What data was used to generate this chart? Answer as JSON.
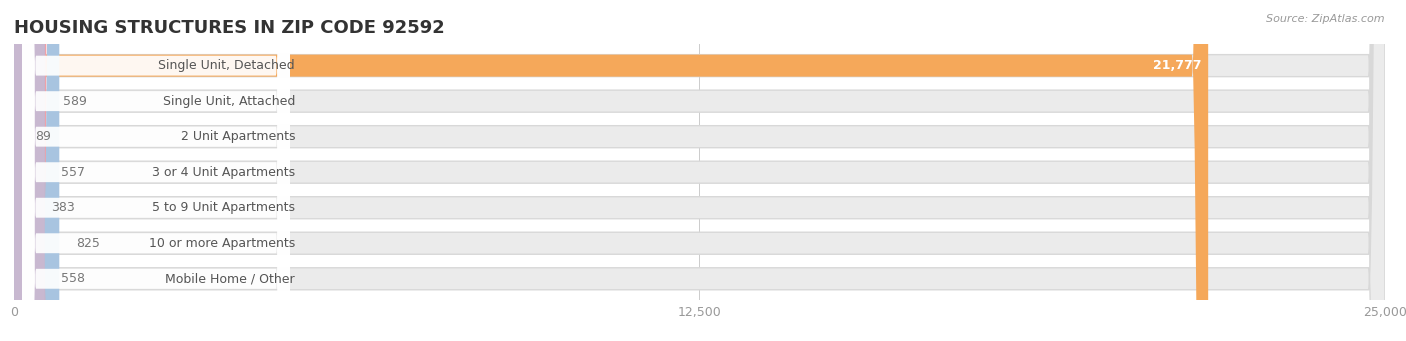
{
  "title": "HOUSING STRUCTURES IN ZIP CODE 92592",
  "source": "Source: ZipAtlas.com",
  "categories": [
    "Single Unit, Detached",
    "Single Unit, Attached",
    "2 Unit Apartments",
    "3 or 4 Unit Apartments",
    "5 to 9 Unit Apartments",
    "10 or more Apartments",
    "Mobile Home / Other"
  ],
  "values": [
    21777,
    589,
    89,
    557,
    383,
    825,
    558
  ],
  "bar_colors": [
    "#f5a85a",
    "#f0a0a8",
    "#a8c4e0",
    "#a8c4e0",
    "#a8c4e0",
    "#a8c4e0",
    "#c8b8d0"
  ],
  "xlim": [
    0,
    25000
  ],
  "xticks": [
    0,
    12500,
    25000
  ],
  "xtick_labels": [
    "0",
    "12,500",
    "25,000"
  ],
  "title_fontsize": 13,
  "label_fontsize": 9,
  "value_fontsize": 9,
  "background_color": "#ffffff",
  "row_bg_color": "#ebebeb",
  "row_gap_color": "#ffffff"
}
